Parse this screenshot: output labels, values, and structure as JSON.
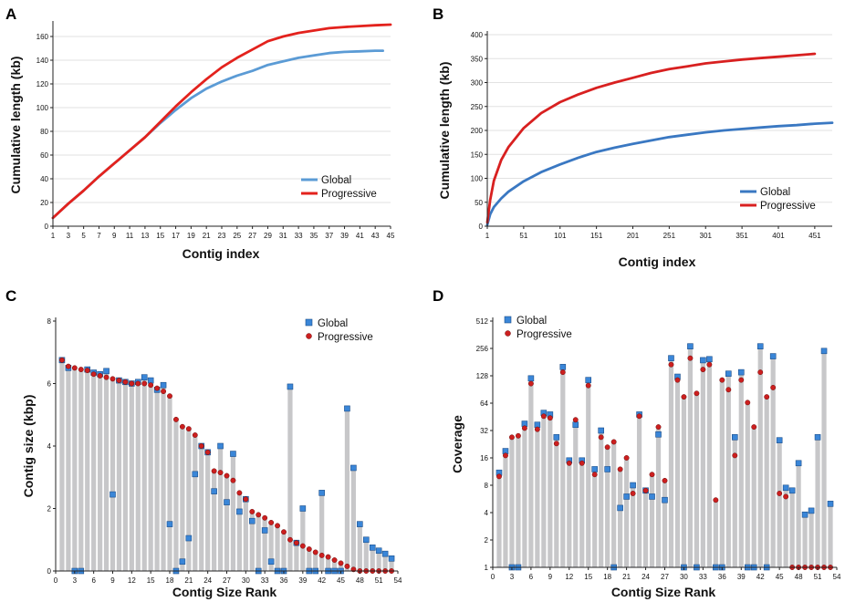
{
  "chart_data": [
    {
      "panel": "A",
      "type": "line",
      "xlabel": "Contig index",
      "ylabel": "Cumulative length (kb)",
      "xlim": [
        1,
        45
      ],
      "ylim": [
        0,
        170
      ],
      "xticks": [
        1,
        3,
        5,
        7,
        9,
        11,
        13,
        15,
        17,
        19,
        21,
        23,
        25,
        27,
        29,
        31,
        33,
        35,
        37,
        39,
        41,
        43,
        45
      ],
      "yticks": [
        0,
        20,
        40,
        60,
        80,
        100,
        120,
        140,
        160
      ],
      "grid": "horizontal",
      "legend": "bottom-right",
      "series": [
        {
          "name": "Global",
          "color": "#5b9bd5",
          "x": [
            1,
            3,
            5,
            7,
            9,
            11,
            13,
            15,
            17,
            19,
            21,
            23,
            25,
            27,
            29,
            31,
            33,
            35,
            37,
            39,
            41,
            43,
            44
          ],
          "y": [
            7,
            19,
            30,
            42,
            53,
            64,
            75,
            87,
            98,
            108,
            116,
            122,
            127,
            131,
            136,
            139,
            142,
            144,
            146,
            147,
            147.5,
            148,
            148
          ]
        },
        {
          "name": "Progressive",
          "color": "#e3221d",
          "x": [
            1,
            3,
            5,
            7,
            9,
            11,
            13,
            15,
            17,
            19,
            21,
            23,
            25,
            27,
            29,
            31,
            33,
            35,
            37,
            39,
            41,
            43,
            45
          ],
          "y": [
            7,
            19,
            30,
            42,
            53,
            64,
            75,
            88,
            101,
            113,
            124,
            134,
            142,
            149,
            156,
            160,
            163,
            165,
            167,
            168,
            168.8,
            169.5,
            170
          ]
        }
      ]
    },
    {
      "panel": "B",
      "type": "line",
      "xlabel": "Contig index",
      "ylabel": "Cumulative length (kb)",
      "xlim": [
        1,
        475
      ],
      "ylim": [
        0,
        400
      ],
      "xticks": [
        1,
        51,
        101,
        151,
        201,
        251,
        301,
        351,
        401,
        451
      ],
      "yticks": [
        0,
        50,
        100,
        150,
        200,
        250,
        300,
        350,
        400
      ],
      "grid": "horizontal",
      "legend": "bottom-right",
      "series": [
        {
          "name": "Global",
          "color": "#3a78c2",
          "x": [
            1,
            5,
            10,
            20,
            30,
            51,
            75,
            101,
            126,
            151,
            176,
            201,
            226,
            251,
            276,
            301,
            326,
            351,
            376,
            401,
            426,
            451,
            475
          ],
          "y": [
            3,
            25,
            40,
            58,
            72,
            94,
            113,
            129,
            143,
            155,
            164,
            172,
            179,
            186,
            191,
            196,
            200,
            203,
            206,
            209,
            211,
            214,
            216
          ]
        },
        {
          "name": "Progressive",
          "color": "#d82020",
          "x": [
            1,
            5,
            10,
            20,
            30,
            51,
            75,
            101,
            126,
            151,
            176,
            201,
            226,
            251,
            276,
            301,
            326,
            351,
            376,
            401,
            426,
            451
          ],
          "y": [
            8,
            55,
            95,
            138,
            165,
            205,
            236,
            259,
            275,
            289,
            300,
            310,
            320,
            328,
            334,
            340,
            344,
            348,
            351,
            354,
            357,
            360
          ]
        }
      ]
    },
    {
      "panel": "C",
      "type": "scatter",
      "xlabel": "Contig Size Rank",
      "ylabel": "Contig size (kbp)",
      "xlim": [
        0,
        54
      ],
      "ylim": [
        0,
        8
      ],
      "xticks": [
        0,
        3,
        6,
        9,
        12,
        15,
        18,
        21,
        24,
        27,
        30,
        33,
        36,
        39,
        42,
        45,
        48,
        51,
        54
      ],
      "yticks": [
        0,
        2,
        4,
        6,
        8
      ],
      "legend": "top-right",
      "series": [
        {
          "name": "Global",
          "marker": "square",
          "color": "#3a86d8",
          "x": [
            1,
            2,
            3,
            4,
            5,
            6,
            7,
            8,
            9,
            10,
            11,
            12,
            13,
            14,
            15,
            16,
            17,
            18,
            19,
            20,
            21,
            22,
            23,
            24,
            25,
            26,
            27,
            28,
            29,
            30,
            31,
            32,
            33,
            34,
            35,
            36,
            37,
            38,
            39,
            40,
            41,
            42,
            43,
            44,
            45,
            46,
            47,
            48,
            49,
            50,
            51,
            52,
            53
          ],
          "y": [
            6.75,
            6.5,
            0,
            0,
            6.45,
            6.35,
            6.3,
            6.4,
            2.45,
            6.1,
            6.05,
            6.0,
            6.05,
            6.2,
            6.1,
            5.8,
            5.95,
            1.5,
            0,
            0.3,
            1.05,
            3.1,
            4.0,
            3.8,
            2.55,
            4.0,
            2.2,
            3.75,
            1.9,
            2.3,
            1.6,
            0,
            1.3,
            0.3,
            0,
            0,
            5.9,
            0.9,
            2.0,
            0,
            0,
            2.5,
            0,
            0,
            0,
            5.2,
            3.3,
            1.5,
            1.0,
            0.75,
            0.65,
            0.55,
            0.4
          ]
        },
        {
          "name": "Progressive",
          "marker": "circle",
          "color": "#cc1f1f",
          "x": [
            1,
            2,
            3,
            4,
            5,
            6,
            7,
            8,
            9,
            10,
            11,
            12,
            13,
            14,
            15,
            16,
            17,
            18,
            19,
            20,
            21,
            22,
            23,
            24,
            25,
            26,
            27,
            28,
            29,
            30,
            31,
            32,
            33,
            34,
            35,
            36,
            37,
            38,
            39,
            40,
            41,
            42,
            43,
            44,
            45,
            46,
            47,
            48,
            49,
            50,
            51,
            52,
            53
          ],
          "y": [
            6.75,
            6.55,
            6.5,
            6.45,
            6.42,
            6.3,
            6.25,
            6.2,
            6.15,
            6.1,
            6.05,
            6.0,
            6.0,
            6.0,
            5.95,
            5.85,
            5.75,
            5.6,
            4.85,
            4.62,
            4.55,
            4.35,
            4.0,
            3.8,
            3.2,
            3.15,
            3.05,
            2.9,
            2.5,
            2.3,
            1.9,
            1.8,
            1.7,
            1.55,
            1.45,
            1.25,
            1.0,
            0.9,
            0.8,
            0.7,
            0.6,
            0.5,
            0.45,
            0.35,
            0.25,
            0.15,
            0.05,
            0,
            0,
            0,
            0,
            0,
            0
          ]
        }
      ]
    },
    {
      "panel": "D",
      "type": "scatter",
      "xlabel": "Contig Size Rank",
      "ylabel": "Coverage",
      "xscale": "linear",
      "yscale": "log2",
      "xlim": [
        0,
        54
      ],
      "ylim": [
        1,
        512
      ],
      "xticks": [
        0,
        3,
        6,
        9,
        12,
        15,
        18,
        21,
        24,
        27,
        30,
        33,
        36,
        39,
        42,
        45,
        48,
        51,
        54
      ],
      "yticks": [
        1,
        2,
        4,
        8,
        16,
        32,
        64,
        128,
        256,
        512
      ],
      "legend": "top-left",
      "series": [
        {
          "name": "Global",
          "marker": "square",
          "color": "#3a86d8",
          "x": [
            1,
            2,
            3,
            4,
            5,
            6,
            7,
            8,
            9,
            10,
            11,
            12,
            13,
            14,
            15,
            16,
            17,
            18,
            19,
            20,
            21,
            22,
            23,
            24,
            25,
            26,
            27,
            28,
            29,
            30,
            31,
            32,
            33,
            34,
            35,
            36,
            37,
            38,
            39,
            40,
            41,
            42,
            43,
            44,
            45,
            46,
            47,
            48,
            49,
            50,
            51,
            52,
            53
          ],
          "y": [
            11,
            19,
            1,
            1,
            38,
            120,
            37,
            50,
            48,
            27,
            160,
            15,
            37,
            15,
            115,
            12,
            32,
            12,
            1,
            4.5,
            6,
            8,
            48,
            7,
            6,
            29,
            5.5,
            200,
            125,
            1,
            270,
            1,
            190,
            195,
            1,
            1,
            135,
            27,
            140,
            1,
            1,
            270,
            1,
            210,
            25,
            7.5,
            7,
            14,
            3.8,
            4.2,
            27,
            240,
            5
          ]
        },
        {
          "name": "Progressive",
          "marker": "circle",
          "color": "#cc1f1f",
          "x": [
            1,
            2,
            3,
            4,
            5,
            6,
            7,
            8,
            9,
            10,
            11,
            12,
            13,
            14,
            15,
            16,
            17,
            18,
            19,
            20,
            21,
            22,
            23,
            24,
            25,
            26,
            27,
            28,
            29,
            30,
            31,
            32,
            33,
            34,
            35,
            36,
            37,
            38,
            39,
            40,
            41,
            42,
            43,
            44,
            45,
            46,
            47,
            48,
            49,
            50,
            51,
            52,
            53
          ],
          "y": [
            10,
            17,
            27,
            28,
            34,
            105,
            33,
            46,
            44,
            23,
            140,
            14,
            42,
            14,
            100,
            10.5,
            27,
            21,
            24,
            12,
            16,
            6.5,
            46,
            7,
            10.5,
            35,
            9,
            170,
            115,
            75,
            200,
            82,
            150,
            170,
            5.5,
            115,
            90,
            17,
            115,
            65,
            35,
            140,
            75,
            95,
            6.5,
            6,
            1,
            1,
            1,
            1,
            1,
            1,
            1
          ]
        }
      ]
    }
  ],
  "panels": {
    "A": {
      "letter": "A"
    },
    "B": {
      "letter": "B"
    },
    "C": {
      "letter": "C"
    },
    "D": {
      "letter": "D"
    }
  }
}
